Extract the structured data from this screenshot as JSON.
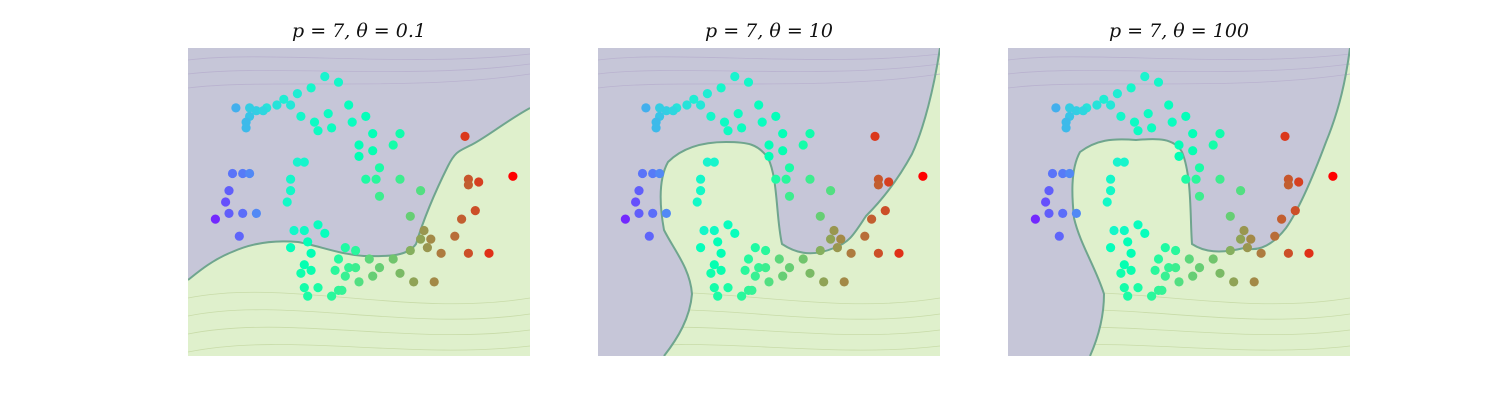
{
  "chart_data": [
    {
      "type": "scatter",
      "title": "p = 7, θ = 0.1",
      "p": 7,
      "theta": 0.1,
      "points": [
        {
          "x": 0.5,
          "y": 3.4,
          "t": 0.4
        },
        {
          "x": 0.3,
          "y": 3.2,
          "t": 0.42
        },
        {
          "x": 0.7,
          "y": 3.3,
          "t": 0.42
        },
        {
          "x": 0.1,
          "y": 3.1,
          "t": 0.38
        },
        {
          "x": -0.1,
          "y": 3.0,
          "t": 0.38
        },
        {
          "x": 0.0,
          "y": 2.9,
          "t": 0.36
        },
        {
          "x": -0.2,
          "y": 2.9,
          "t": 0.35
        },
        {
          "x": -0.35,
          "y": 2.85,
          "t": 0.35
        },
        {
          "x": -0.5,
          "y": 2.8,
          "t": 0.3
        },
        {
          "x": -0.6,
          "y": 2.85,
          "t": 0.3
        },
        {
          "x": -0.6,
          "y": 2.7,
          "t": 0.28
        },
        {
          "x": -0.65,
          "y": 2.6,
          "t": 0.26
        },
        {
          "x": -0.65,
          "y": 2.5,
          "t": 0.26
        },
        {
          "x": -0.8,
          "y": 2.85,
          "t": 0.24
        },
        {
          "x": -0.4,
          "y": 2.8,
          "t": 0.32
        },
        {
          "x": 0.15,
          "y": 2.7,
          "t": 0.42
        },
        {
          "x": 0.35,
          "y": 2.6,
          "t": 0.44
        },
        {
          "x": 0.55,
          "y": 2.75,
          "t": 0.45
        },
        {
          "x": 0.85,
          "y": 2.9,
          "t": 0.47
        },
        {
          "x": 0.9,
          "y": 2.6,
          "t": 0.46
        },
        {
          "x": 1.1,
          "y": 2.7,
          "t": 0.48
        },
        {
          "x": 1.2,
          "y": 2.4,
          "t": 0.49
        },
        {
          "x": 0.6,
          "y": 2.5,
          "t": 0.46
        },
        {
          "x": 0.4,
          "y": 2.45,
          "t": 0.45
        },
        {
          "x": 1.0,
          "y": 2.0,
          "t": 0.5
        },
        {
          "x": 1.0,
          "y": 2.2,
          "t": 0.49
        },
        {
          "x": 1.6,
          "y": 2.4,
          "t": 0.53
        },
        {
          "x": 1.5,
          "y": 2.2,
          "t": 0.54
        },
        {
          "x": 1.2,
          "y": 2.1,
          "t": 0.51
        },
        {
          "x": 1.3,
          "y": 1.8,
          "t": 0.55
        },
        {
          "x": 0.1,
          "y": 1.9,
          "t": 0.4
        },
        {
          "x": 0.2,
          "y": 1.9,
          "t": 0.41
        },
        {
          "x": 0.0,
          "y": 1.6,
          "t": 0.42
        },
        {
          "x": 0.0,
          "y": 1.4,
          "t": 0.43
        },
        {
          "x": -0.05,
          "y": 1.2,
          "t": 0.43
        },
        {
          "x": -0.85,
          "y": 1.7,
          "t": 0.15
        },
        {
          "x": -0.7,
          "y": 1.7,
          "t": 0.16
        },
        {
          "x": -0.9,
          "y": 1.4,
          "t": 0.12
        },
        {
          "x": -0.95,
          "y": 1.2,
          "t": 0.1
        },
        {
          "x": -1.1,
          "y": 0.9,
          "t": 0.05
        },
        {
          "x": -0.9,
          "y": 1.0,
          "t": 0.12
        },
        {
          "x": -0.7,
          "y": 1.0,
          "t": 0.14
        },
        {
          "x": -0.5,
          "y": 1.0,
          "t": 0.18
        },
        {
          "x": -0.75,
          "y": 0.6,
          "t": 0.13
        },
        {
          "x": -0.6,
          "y": 1.7,
          "t": 0.18
        },
        {
          "x": 0.05,
          "y": 0.7,
          "t": 0.42
        },
        {
          "x": 0.2,
          "y": 0.7,
          "t": 0.44
        },
        {
          "x": 0.4,
          "y": 0.8,
          "t": 0.46
        },
        {
          "x": 0.5,
          "y": 0.65,
          "t": 0.47
        },
        {
          "x": 0.0,
          "y": 0.4,
          "t": 0.48
        },
        {
          "x": 0.25,
          "y": 0.5,
          "t": 0.49
        },
        {
          "x": 0.3,
          "y": 0.3,
          "t": 0.5
        },
        {
          "x": 0.8,
          "y": 0.4,
          "t": 0.56
        },
        {
          "x": 0.7,
          "y": 0.2,
          "t": 0.57
        },
        {
          "x": 0.3,
          "y": 0.0,
          "t": 0.52
        },
        {
          "x": 0.2,
          "y": 0.1,
          "t": 0.51
        },
        {
          "x": 0.15,
          "y": -0.05,
          "t": 0.53
        },
        {
          "x": 0.65,
          "y": 0.0,
          "t": 0.58
        },
        {
          "x": 0.85,
          "y": 0.05,
          "t": 0.6
        },
        {
          "x": 0.95,
          "y": 0.05,
          "t": 0.62
        },
        {
          "x": 0.4,
          "y": -0.3,
          "t": 0.55
        },
        {
          "x": 0.7,
          "y": -0.35,
          "t": 0.59
        },
        {
          "x": 0.75,
          "y": -0.35,
          "t": 0.6
        },
        {
          "x": 0.6,
          "y": -0.45,
          "t": 0.58
        },
        {
          "x": 0.2,
          "y": -0.3,
          "t": 0.54
        },
        {
          "x": 0.25,
          "y": -0.45,
          "t": 0.55
        },
        {
          "x": 1.0,
          "y": -0.2,
          "t": 0.66
        },
        {
          "x": 1.15,
          "y": 0.2,
          "t": 0.68
        },
        {
          "x": 1.3,
          "y": 0.05,
          "t": 0.7
        },
        {
          "x": 1.5,
          "y": 0.2,
          "t": 0.72
        },
        {
          "x": 1.6,
          "y": -0.05,
          "t": 0.74
        },
        {
          "x": 1.2,
          "y": -0.1,
          "t": 0.7
        },
        {
          "x": 1.75,
          "y": 0.35,
          "t": 0.76
        },
        {
          "x": 1.8,
          "y": -0.2,
          "t": 0.78
        },
        {
          "x": 2.1,
          "y": -0.2,
          "t": 0.82
        },
        {
          "x": 2.2,
          "y": 0.3,
          "t": 0.84
        },
        {
          "x": 1.95,
          "y": 0.7,
          "t": 0.8
        },
        {
          "x": 2.05,
          "y": 0.55,
          "t": 0.82
        },
        {
          "x": 1.9,
          "y": 0.55,
          "t": 0.78
        },
        {
          "x": 2.0,
          "y": 0.4,
          "t": 0.8
        },
        {
          "x": 2.4,
          "y": 0.6,
          "t": 0.86
        },
        {
          "x": 2.5,
          "y": 0.9,
          "t": 0.88
        },
        {
          "x": 2.6,
          "y": 0.3,
          "t": 0.9
        },
        {
          "x": 2.7,
          "y": 1.05,
          "t": 0.9
        },
        {
          "x": 2.9,
          "y": 0.3,
          "t": 0.94
        },
        {
          "x": 2.6,
          "y": 1.6,
          "t": 0.89
        },
        {
          "x": 2.75,
          "y": 1.55,
          "t": 0.92
        },
        {
          "x": 2.6,
          "y": 1.5,
          "t": 0.88
        },
        {
          "x": 3.25,
          "y": 1.65,
          "t": 1.0
        },
        {
          "x": 2.55,
          "y": 2.35,
          "t": 0.93
        },
        {
          "x": 1.75,
          "y": 0.95,
          "t": 0.7
        },
        {
          "x": 1.3,
          "y": 1.3,
          "t": 0.62
        },
        {
          "x": 1.6,
          "y": 1.6,
          "t": 0.62
        },
        {
          "x": 1.9,
          "y": 1.4,
          "t": 0.66
        },
        {
          "x": 1.1,
          "y": 1.6,
          "t": 0.56
        },
        {
          "x": 1.25,
          "y": 1.6,
          "t": 0.58
        },
        {
          "x": 0.95,
          "y": 0.35,
          "t": 0.58
        },
        {
          "x": 0.8,
          "y": -0.1,
          "t": 0.61
        }
      ]
    },
    {
      "type": "scatter",
      "title": "p = 7, θ = 10",
      "p": 7,
      "theta": 10
    },
    {
      "type": "scatter",
      "title": "p = 7, θ = 100",
      "p": 7,
      "theta": 100
    }
  ]
}
